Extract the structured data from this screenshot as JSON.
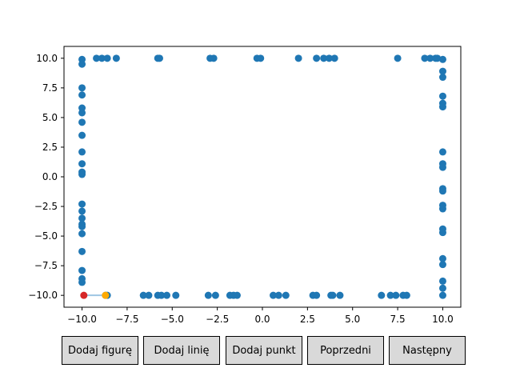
{
  "chart_data": {
    "type": "scatter",
    "xlim": [
      -11,
      11
    ],
    "ylim": [
      -11,
      11
    ],
    "xticks": [
      "−10.0",
      "−7.5",
      "−5.0",
      "−2.5",
      "0.0",
      "2.5",
      "5.0",
      "7.5",
      "10.0"
    ],
    "xtick_values": [
      -10,
      -7.5,
      -5,
      -2.5,
      0,
      2.5,
      5,
      7.5,
      10
    ],
    "yticks": [
      "10.0",
      "7.5",
      "5.0",
      "2.5",
      "0.0",
      "−2.5",
      "−5.0",
      "−7.5",
      "−10.0"
    ],
    "ytick_values": [
      10,
      7.5,
      5,
      2.5,
      0,
      -2.5,
      -5,
      -7.5,
      -10
    ],
    "grid": false,
    "point_color": "#1f77b4",
    "points": [
      [
        -10.0,
        9.9
      ],
      [
        -10.0,
        9.5
      ],
      [
        -10.0,
        7.5
      ],
      [
        -10.0,
        6.9
      ],
      [
        -10.0,
        5.8
      ],
      [
        -10.0,
        5.4
      ],
      [
        -10.0,
        4.6
      ],
      [
        -10.0,
        3.5
      ],
      [
        -10.0,
        2.1
      ],
      [
        -10.0,
        1.1
      ],
      [
        -10.0,
        0.4
      ],
      [
        -10.0,
        0.2
      ],
      [
        -10.0,
        -2.3
      ],
      [
        -10.0,
        -2.9
      ],
      [
        -10.0,
        -3.5
      ],
      [
        -10.0,
        -4.0
      ],
      [
        -10.0,
        -4.2
      ],
      [
        -10.0,
        -4.8
      ],
      [
        -10.0,
        -6.3
      ],
      [
        -10.0,
        -7.9
      ],
      [
        -10.0,
        -8.6
      ],
      [
        -10.0,
        -8.9
      ],
      [
        -9.2,
        10.0
      ],
      [
        -8.9,
        10.0
      ],
      [
        -8.6,
        10.0
      ],
      [
        -8.1,
        10.0
      ],
      [
        -5.8,
        10.0
      ],
      [
        -5.7,
        10.0
      ],
      [
        -2.9,
        10.0
      ],
      [
        -2.7,
        10.0
      ],
      [
        -0.3,
        10.0
      ],
      [
        -0.1,
        10.0
      ],
      [
        2.0,
        10.0
      ],
      [
        3.0,
        10.0
      ],
      [
        3.4,
        10.0
      ],
      [
        3.7,
        10.0
      ],
      [
        4.0,
        10.0
      ],
      [
        7.5,
        10.0
      ],
      [
        9.0,
        10.0
      ],
      [
        9.3,
        10.0
      ],
      [
        9.6,
        10.0
      ],
      [
        9.7,
        10.0
      ],
      [
        10.0,
        9.9
      ],
      [
        10.0,
        8.9
      ],
      [
        10.0,
        8.4
      ],
      [
        10.0,
        6.8
      ],
      [
        10.0,
        6.2
      ],
      [
        10.0,
        5.9
      ],
      [
        10.0,
        2.1
      ],
      [
        10.0,
        1.1
      ],
      [
        10.0,
        0.8
      ],
      [
        10.0,
        -1.0
      ],
      [
        10.0,
        -1.2
      ],
      [
        10.0,
        -2.4
      ],
      [
        10.0,
        -2.7
      ],
      [
        10.0,
        -4.4
      ],
      [
        10.0,
        -4.7
      ],
      [
        10.0,
        -6.9
      ],
      [
        10.0,
        -7.4
      ],
      [
        10.0,
        -8.8
      ],
      [
        10.0,
        -9.4
      ],
      [
        10.0,
        -10.0
      ],
      [
        -6.6,
        -10.0
      ],
      [
        -6.3,
        -10.0
      ],
      [
        -5.8,
        -10.0
      ],
      [
        -5.6,
        -10.0
      ],
      [
        -5.3,
        -10.0
      ],
      [
        -4.8,
        -10.0
      ],
      [
        -3.0,
        -10.0
      ],
      [
        -2.6,
        -10.0
      ],
      [
        -1.8,
        -10.0
      ],
      [
        -1.6,
        -10.0
      ],
      [
        -1.4,
        -10.0
      ],
      [
        0.6,
        -10.0
      ],
      [
        0.9,
        -10.0
      ],
      [
        1.3,
        -10.0
      ],
      [
        2.8,
        -10.0
      ],
      [
        3.0,
        -10.0
      ],
      [
        3.8,
        -10.0
      ],
      [
        3.9,
        -10.0
      ],
      [
        4.3,
        -10.0
      ],
      [
        6.6,
        -10.0
      ],
      [
        7.1,
        -10.0
      ],
      [
        7.4,
        -10.0
      ],
      [
        7.8,
        -10.0
      ],
      [
        8.0,
        -10.0
      ],
      [
        -8.6,
        -10.0
      ],
      [
        -8.7,
        -10.0
      ]
    ],
    "segment": {
      "from": [
        -9.9,
        -10.0
      ],
      "to": [
        -8.6,
        -10.0
      ],
      "color": "#9ec6e3"
    },
    "marker_start": {
      "x": -9.9,
      "y": -10.0,
      "color": "#d62728"
    },
    "marker_end": {
      "x": -8.7,
      "y": -10.0,
      "color": "#ffaa00"
    }
  },
  "buttons": {
    "add_shape": "Dodaj figurę",
    "add_line": "Dodaj linię",
    "add_point": "Dodaj punkt",
    "previous": "Poprzedni",
    "next": "Następny"
  }
}
